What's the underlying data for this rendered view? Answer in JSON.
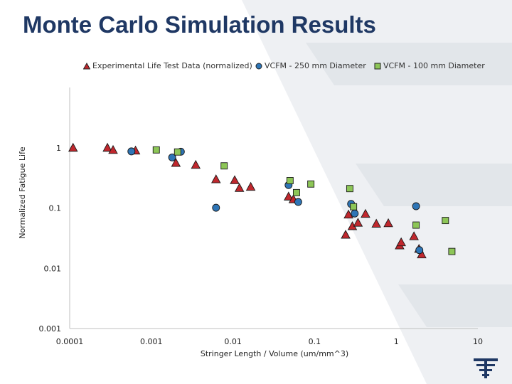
{
  "title": "Monte Carlo Simulation Results",
  "chart_data": {
    "type": "scatter",
    "title": "Monte Carlo Simulation Results",
    "xlabel": "Stringer Length / Volume (um/mm^3)",
    "ylabel": "Normalized Fatigue Life",
    "xscale": "log",
    "yscale": "log",
    "xlim": [
      0.0001,
      10
    ],
    "ylim": [
      0.001,
      10
    ],
    "x_ticks": [
      "0.0001",
      "0.001",
      "0.01",
      "0.1",
      "1",
      "10"
    ],
    "y_ticks": [
      "0.001",
      "0.01",
      "0.1",
      "1"
    ],
    "legend_position": "top",
    "colors": {
      "triangle": "#c0272d",
      "circle": "#2e75b6",
      "square": "#8dc657",
      "title": "#1f3864",
      "axis": "#bfbfbf"
    },
    "series": [
      {
        "name": "Experimental Life Test Data (normalized)",
        "marker": "triangle",
        "points": [
          [
            0.00011,
            1.0
          ],
          [
            0.00029,
            1.0
          ],
          [
            0.00034,
            0.92
          ],
          [
            0.00064,
            0.9
          ],
          [
            0.002,
            0.56
          ],
          [
            0.0035,
            0.52
          ],
          [
            0.0062,
            0.3
          ],
          [
            0.0105,
            0.29
          ],
          [
            0.012,
            0.215
          ],
          [
            0.0165,
            0.225
          ],
          [
            0.048,
            0.155
          ],
          [
            0.055,
            0.14
          ],
          [
            0.24,
            0.036
          ],
          [
            0.26,
            0.078
          ],
          [
            0.29,
            0.05
          ],
          [
            0.34,
            0.057
          ],
          [
            0.42,
            0.08
          ],
          [
            0.57,
            0.055
          ],
          [
            0.8,
            0.056
          ],
          [
            1.1,
            0.024
          ],
          [
            1.15,
            0.027
          ],
          [
            1.65,
            0.034
          ],
          [
            1.9,
            0.021
          ],
          [
            2.05,
            0.017
          ]
        ]
      },
      {
        "name": "VCFM - 250 mm Diameter",
        "marker": "circle",
        "points": [
          [
            0.00057,
            0.87
          ],
          [
            0.0018,
            0.69
          ],
          [
            0.0023,
            0.86
          ],
          [
            0.0062,
            0.101
          ],
          [
            0.048,
            0.24
          ],
          [
            0.063,
            0.126
          ],
          [
            0.28,
            0.117
          ],
          [
            0.31,
            0.081
          ],
          [
            1.75,
            0.107
          ],
          [
            1.92,
            0.02
          ]
        ]
      },
      {
        "name": "VCFM - 100 mm Diameter",
        "marker": "square",
        "points": [
          [
            0.00115,
            0.92
          ],
          [
            0.0021,
            0.85
          ],
          [
            0.0078,
            0.5
          ],
          [
            0.05,
            0.285
          ],
          [
            0.06,
            0.18
          ],
          [
            0.09,
            0.25
          ],
          [
            0.27,
            0.21
          ],
          [
            0.3,
            0.105
          ],
          [
            1.75,
            0.052
          ],
          [
            4.0,
            0.062
          ],
          [
            4.8,
            0.019
          ]
        ]
      }
    ]
  }
}
